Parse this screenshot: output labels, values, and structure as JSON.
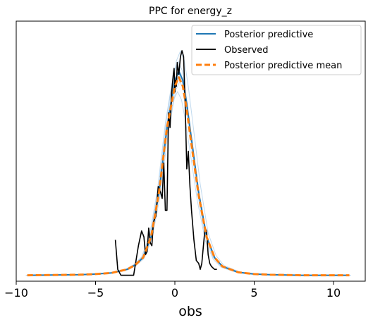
{
  "chart_data": {
    "type": "line",
    "title": "PPC for energy_z",
    "xlabel": "obs",
    "ylabel": "",
    "xlim": [
      -10.0,
      12.0
    ],
    "xticks": [
      -10,
      -5,
      0,
      5,
      10
    ],
    "xtick_labels": [
      "−10",
      "−5",
      "0",
      "5",
      "10"
    ],
    "ylim": [
      -0.02,
      0.86
    ],
    "y_ticks_shown": false,
    "grid": false,
    "legend_placement": "top-right",
    "colors": {
      "posterior_predictive": "#1f77b4",
      "posterior_predictive_samples": "#a6cbe8",
      "observed": "#000000",
      "mean": "#ff7f0e"
    },
    "series": [
      {
        "name": "Posterior predictive",
        "style": "solid",
        "x": [
          -9.3,
          -6,
          -5,
          -4,
          -3,
          -2.5,
          -2,
          -1.5,
          -1,
          -0.5,
          0,
          0.25,
          0.5,
          0.75,
          1,
          1.5,
          2,
          2.5,
          3,
          4,
          5,
          6,
          8,
          11
        ],
        "y": [
          0.0,
          0.002,
          0.004,
          0.008,
          0.02,
          0.035,
          0.06,
          0.13,
          0.28,
          0.5,
          0.66,
          0.69,
          0.66,
          0.58,
          0.48,
          0.28,
          0.13,
          0.06,
          0.03,
          0.01,
          0.004,
          0.002,
          0.0,
          0.0
        ]
      },
      {
        "name": "Observed",
        "style": "solid",
        "x": [
          -3.75,
          -3.6,
          -3.4,
          -3.0,
          -2.6,
          -2.3,
          -2.1,
          -1.95,
          -1.85,
          -1.75,
          -1.65,
          -1.55,
          -1.45,
          -1.35,
          -1.2,
          -1.05,
          -0.9,
          -0.8,
          -0.7,
          -0.6,
          -0.5,
          -0.4,
          -0.3,
          -0.2,
          -0.1,
          -0.05,
          0.0,
          0.05,
          0.1,
          0.15,
          0.25,
          0.35,
          0.45,
          0.55,
          0.65,
          0.75,
          0.85,
          0.95,
          1.05,
          1.2,
          1.35,
          1.5,
          1.6,
          1.7,
          1.8,
          1.9,
          2.0,
          2.1,
          2.2,
          2.3,
          2.4,
          2.5,
          2.65
        ],
        "y": [
          0.12,
          0.02,
          0.0,
          0.0,
          0.0,
          0.1,
          0.15,
          0.13,
          0.07,
          0.08,
          0.16,
          0.11,
          0.1,
          0.18,
          0.2,
          0.3,
          0.28,
          0.26,
          0.38,
          0.22,
          0.22,
          0.55,
          0.5,
          0.62,
          0.68,
          0.7,
          0.62,
          0.66,
          0.64,
          0.72,
          0.68,
          0.74,
          0.76,
          0.74,
          0.58,
          0.36,
          0.42,
          0.3,
          0.22,
          0.12,
          0.05,
          0.04,
          0.02,
          0.04,
          0.1,
          0.16,
          0.15,
          0.07,
          0.04,
          0.03,
          0.025,
          0.02,
          0.02
        ]
      },
      {
        "name": "Posterior predictive mean",
        "style": "dashed",
        "x": [
          -9.3,
          -6,
          -5,
          -4,
          -3,
          -2.5,
          -2,
          -1.5,
          -1,
          -0.5,
          0,
          0.25,
          0.5,
          0.75,
          1,
          1.5,
          2,
          2.5,
          3,
          4,
          5,
          6,
          8,
          11
        ],
        "y": [
          0.0,
          0.002,
          0.004,
          0.008,
          0.02,
          0.035,
          0.06,
          0.13,
          0.28,
          0.5,
          0.64,
          0.67,
          0.64,
          0.56,
          0.46,
          0.27,
          0.13,
          0.06,
          0.03,
          0.01,
          0.004,
          0.002,
          0.0,
          0.0
        ]
      }
    ]
  }
}
